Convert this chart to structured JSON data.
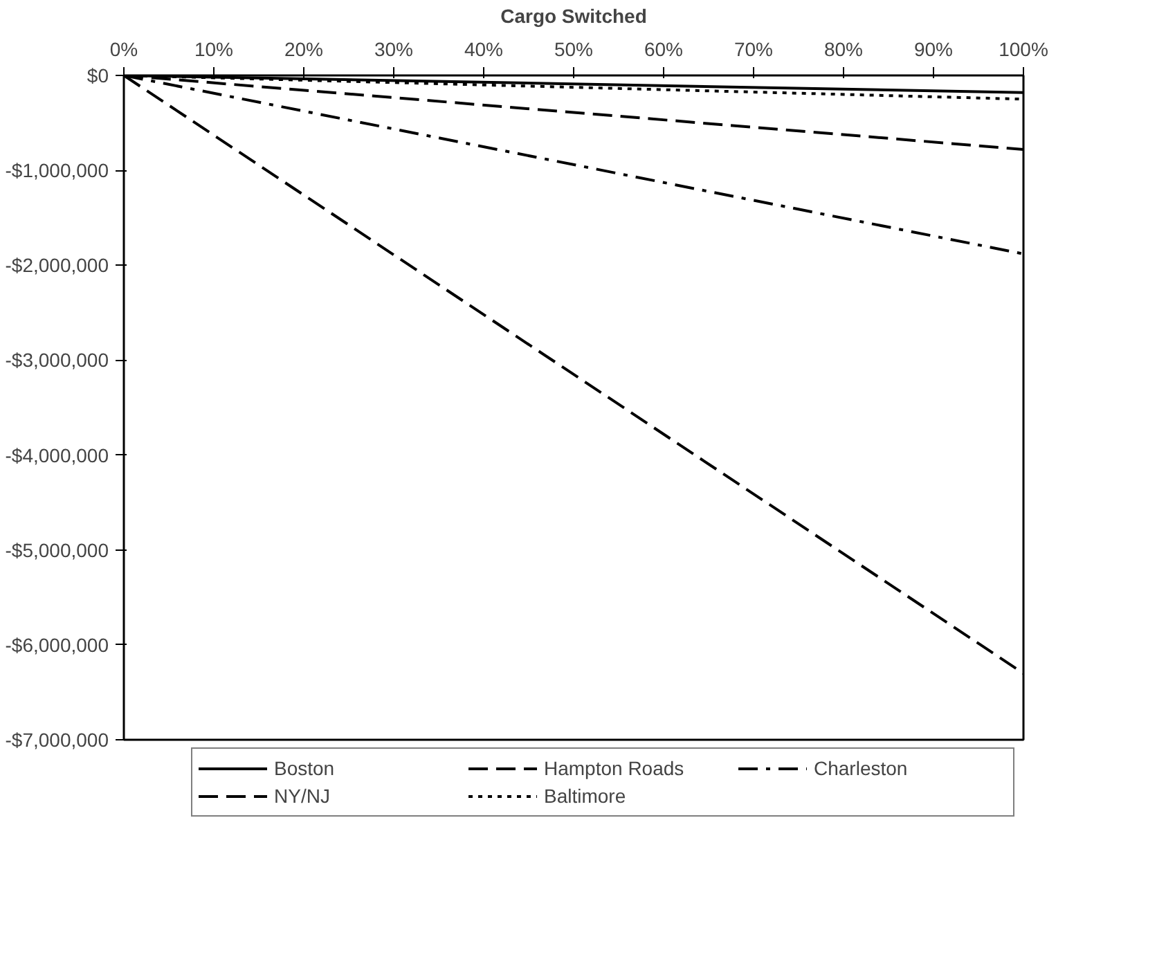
{
  "chart_data": {
    "type": "line",
    "xlabel": "Cargo Switched",
    "xlim": [
      0,
      100
    ],
    "xticks": [
      {
        "value": 0,
        "label": "0%"
      },
      {
        "value": 10,
        "label": "10%"
      },
      {
        "value": 20,
        "label": "20%"
      },
      {
        "value": 30,
        "label": "30%"
      },
      {
        "value": 40,
        "label": "40%"
      },
      {
        "value": 50,
        "label": "50%"
      },
      {
        "value": 60,
        "label": "60%"
      },
      {
        "value": 70,
        "label": "70%"
      },
      {
        "value": 80,
        "label": "80%"
      },
      {
        "value": 90,
        "label": "90%"
      },
      {
        "value": 100,
        "label": "100%"
      }
    ],
    "ylim": [
      -7000000,
      0
    ],
    "yticks": [
      {
        "value": 0,
        "label": "$0"
      },
      {
        "value": -1000000,
        "label": "-$1,000,000"
      },
      {
        "value": -2000000,
        "label": "-$2,000,000"
      },
      {
        "value": -3000000,
        "label": "-$3,000,000"
      },
      {
        "value": -4000000,
        "label": "-$4,000,000"
      },
      {
        "value": -5000000,
        "label": "-$5,000,000"
      },
      {
        "value": -6000000,
        "label": "-$6,000,000"
      },
      {
        "value": -7000000,
        "label": "-$7,000,000"
      }
    ],
    "x": [
      0,
      100
    ],
    "grid": false,
    "legend": "bottom",
    "marker": "none",
    "series": [
      {
        "name": "Boston",
        "color": "#000000",
        "line_style": "solid",
        "values": [
          0,
          -180000
        ]
      },
      {
        "name": "NY/NJ",
        "color": "#000000",
        "line_style": "dashed",
        "values": [
          0,
          -780000
        ]
      },
      {
        "name": "Hampton Roads",
        "color": "#000000",
        "line_style": "dashed",
        "values": [
          0,
          -6300000
        ]
      },
      {
        "name": "Baltimore",
        "color": "#000000",
        "line_style": "dotted",
        "values": [
          0,
          -250000
        ]
      },
      {
        "name": "Charleston",
        "color": "#000000",
        "line_style": "dashdot",
        "values": [
          0,
          -1880000
        ]
      }
    ]
  }
}
